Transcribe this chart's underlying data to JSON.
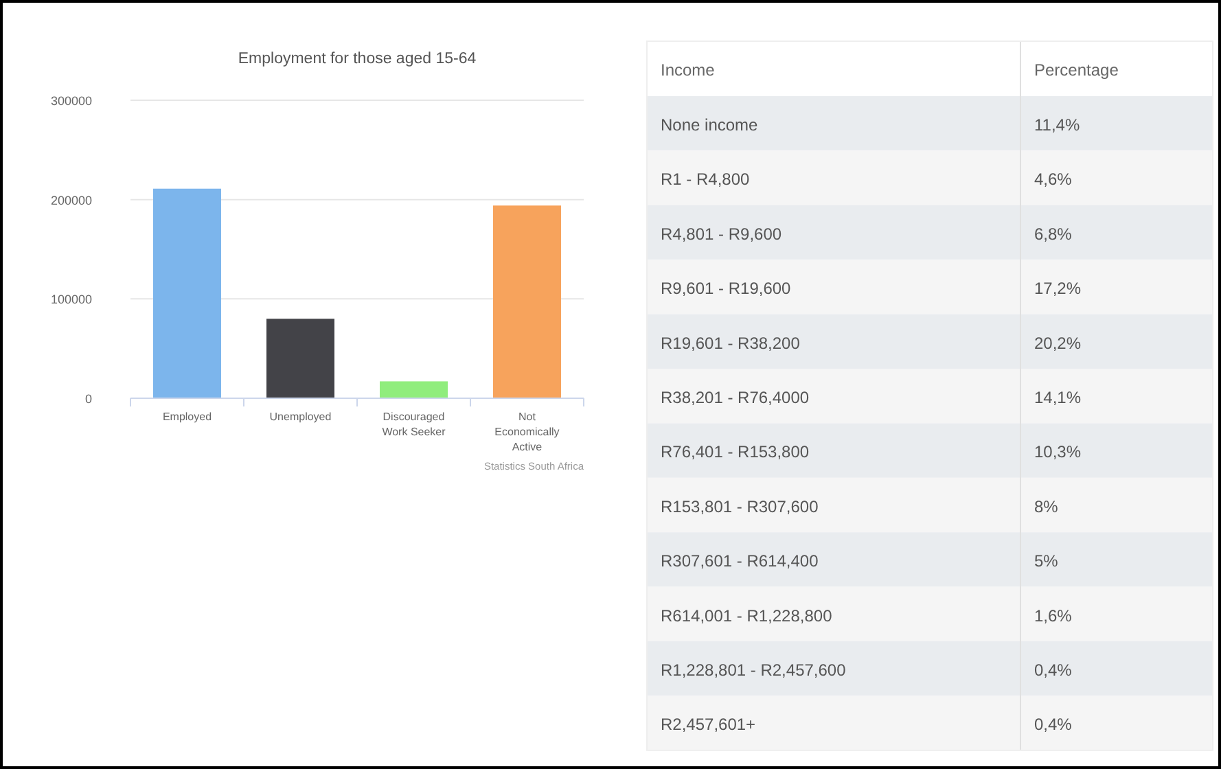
{
  "chart_data": [
    {
      "type": "bar",
      "title": "Employment for those aged 15-64",
      "categories": [
        "Employed",
        "Unemployed",
        "Discouraged Work Seeker",
        "Not Economically Active"
      ],
      "values": [
        211000,
        80000,
        17000,
        194000
      ],
      "colors": [
        "#7cb5ec",
        "#434348",
        "#90ed7d",
        "#f7a35c"
      ],
      "ylim": [
        0,
        300000
      ],
      "yticks": [
        0,
        100000,
        200000,
        300000
      ],
      "grid": "y",
      "annotations": [
        "Statistics South Africa"
      ]
    },
    {
      "type": "other",
      "xlabel": "Income",
      "ylabel": "Percentage",
      "categories": [
        "None income",
        "R1 - R4,800",
        "R4,801 - R9,600",
        "R9,601 - R19,600",
        "R19,601 - R38,200",
        "R38,201 - R76,4000",
        "R76,401 - R153,800",
        "R153,801 - R307,600",
        "R307,601 - R614,400",
        "R614,001 - R1,228,800",
        "R1,228,801 - R2,457,600",
        "R2,457,601+"
      ],
      "value_labels": [
        "11,4%",
        "4,6%",
        "6,8%",
        "17,2%",
        "20,2%",
        "14,1%",
        "10,3%",
        "8%",
        "5%",
        "1,6%",
        "0,4%",
        "0,4%"
      ]
    }
  ]
}
